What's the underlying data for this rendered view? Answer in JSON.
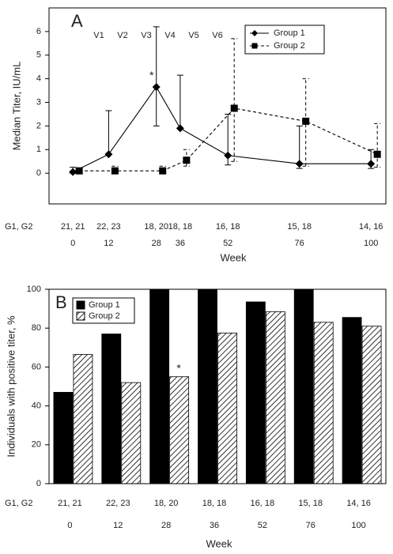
{
  "chart_data": [
    {
      "type": "line",
      "panel_label": "A",
      "y_label": "Median Titer, IU/mL",
      "x_label": "Week",
      "x": [
        0,
        12,
        28,
        36,
        52,
        76,
        100
      ],
      "xlim": [
        -8,
        105
      ],
      "ylim": [
        -1.3,
        7.0
      ],
      "xticks": [
        0,
        12,
        28,
        36,
        52,
        76,
        100
      ],
      "yticks": [
        0,
        1,
        2,
        3,
        4,
        5,
        6
      ],
      "count_title": "G1, G2",
      "counts": [
        "21, 21",
        "22, 23",
        "18, 20",
        "18, 18",
        "16, 18",
        "15, 18",
        "14, 16"
      ],
      "annotations": [
        "V1",
        "V2",
        "V3",
        "V4",
        "V5",
        "V6"
      ],
      "marks_note": {
        "text": "*",
        "series": 0,
        "index": 2
      },
      "legend": "upper right",
      "series": [
        {
          "name": "Group 1",
          "color": "#000000",
          "marker": "diamond",
          "dashed": false,
          "values": [
            0.05,
            0.8,
            3.65,
            1.9,
            0.75,
            0.4,
            0.4
          ],
          "upper": [
            0.25,
            2.65,
            6.2,
            4.15,
            2.5,
            2.0,
            1.0
          ],
          "lower": [
            0.0,
            0.8,
            2.0,
            1.9,
            0.35,
            0.2,
            0.2
          ]
        },
        {
          "name": "Group 2",
          "color": "#000000",
          "marker": "square",
          "dashed": true,
          "values": [
            0.1,
            0.1,
            0.1,
            0.55,
            2.75,
            2.2,
            0.8
          ],
          "upper": [
            0.2,
            0.3,
            0.3,
            1.0,
            5.7,
            4.0,
            2.1
          ],
          "lower": [
            0.0,
            0.1,
            0.1,
            0.3,
            0.5,
            0.3,
            0.25
          ]
        }
      ]
    },
    {
      "type": "bar",
      "panel_label": "B",
      "y_label": "Individuals with positive titer, %",
      "x_label": "Week",
      "categories": [
        "0",
        "12",
        "28",
        "36",
        "52",
        "76",
        "100"
      ],
      "ylim": [
        0,
        100
      ],
      "yticks": [
        0,
        20,
        40,
        60,
        80,
        100
      ],
      "count_title": "G1, G2",
      "counts": [
        "21, 21",
        "22, 23",
        "18, 20",
        "18, 18",
        "16, 18",
        "15, 18",
        "14, 16"
      ],
      "marks_note": {
        "text": "*",
        "series": 1,
        "index": 2
      },
      "legend": "upper left",
      "series": [
        {
          "name": "Group 1",
          "color": "#000000",
          "hatched": false,
          "values": [
            47,
            77,
            100,
            100,
            93.5,
            100,
            85.5
          ]
        },
        {
          "name": "Group 2",
          "color": "#000000",
          "hatched": true,
          "values": [
            66.5,
            52,
            55,
            77.5,
            88.5,
            83,
            81
          ]
        }
      ]
    }
  ]
}
